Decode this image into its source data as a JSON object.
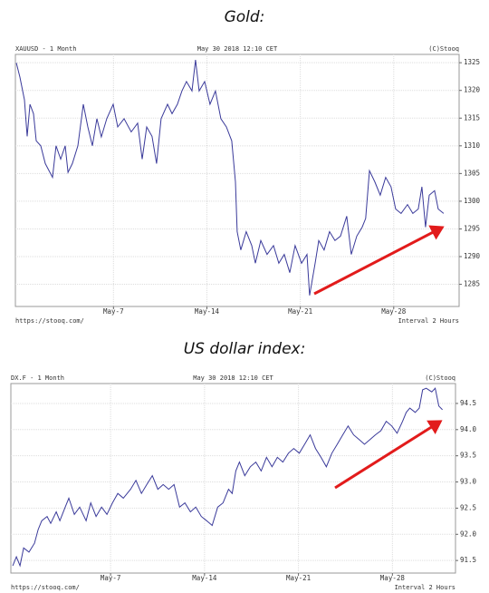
{
  "chart_data": [
    {
      "type": "line",
      "title": "Gold:",
      "symbol_label": "XAUUSD - 1 Month",
      "timestamp": "May 30 2018 12:10 CET",
      "source": "(C)Stooq",
      "url": "https://stooq.com/",
      "interval": "Interval 2 Hours",
      "color": "#3a3a9a",
      "grid": true,
      "x": [
        -0.28,
        -0.01,
        0.33,
        0.53,
        0.74,
        1.01,
        1.21,
        1.55,
        1.89,
        2.43,
        2.7,
        3.04,
        3.38,
        3.59,
        3.92,
        4.33,
        4.74,
        5.08,
        5.42,
        5.76,
        6.09,
        6.5,
        6.98,
        7.32,
        7.79,
        8.33,
        8.81,
        9.15,
        9.49,
        9.89,
        10.23,
        10.57,
        11.05,
        11.39,
        11.79,
        12.13,
        12.47,
        12.88,
        13.15,
        13.42,
        13.83,
        14.23,
        14.64,
        15.05,
        15.46,
        15.86,
        16.14,
        16.27,
        16.54,
        16.95,
        17.36,
        17.63,
        18.04,
        18.51,
        18.99,
        19.39,
        19.8,
        20.21,
        20.61,
        21.09,
        21.5,
        21.7,
        22.11,
        22.38,
        22.78,
        23.19,
        23.6,
        24.01,
        24.48,
        24.82,
        25.23,
        25.63,
        25.9,
        26.18,
        26.58,
        26.99,
        27.4,
        27.8,
        28.14,
        28.55,
        29.03,
        29.43,
        29.84,
        30.11,
        30.38,
        30.66,
        31.06,
        31.33,
        31.74
      ],
      "values": [
        1325,
        1322.4,
        1318.3,
        1311.7,
        1317.5,
        1315.8,
        1310.9,
        1310,
        1306.8,
        1304.3,
        1310,
        1307.6,
        1310,
        1305.2,
        1306.8,
        1310,
        1317.5,
        1313.4,
        1310,
        1314.9,
        1311.6,
        1314.9,
        1317.5,
        1313.4,
        1314.9,
        1312.5,
        1314.1,
        1307.6,
        1313.4,
        1311.7,
        1306.8,
        1314.9,
        1317.5,
        1315.8,
        1317.5,
        1319.9,
        1321.6,
        1319.9,
        1325.5,
        1319.9,
        1321.6,
        1317.5,
        1319.9,
        1314.9,
        1313.4,
        1310.9,
        1303.5,
        1294.5,
        1291.2,
        1294.5,
        1292,
        1288.8,
        1292.9,
        1290.4,
        1292,
        1288.8,
        1290.4,
        1287.1,
        1292,
        1288.8,
        1290.4,
        1283,
        1288.8,
        1292.9,
        1291.2,
        1294.5,
        1292.9,
        1293.7,
        1297.3,
        1290.4,
        1293.7,
        1295.3,
        1296.9,
        1305.5,
        1303.5,
        1301.1,
        1304.3,
        1302.6,
        1298.6,
        1297.8,
        1299.4,
        1297.8,
        1298.6,
        1302.6,
        1295.3,
        1301.1,
        1301.9,
        1298.6,
        1297.8
      ],
      "xlim": [
        -0.35,
        32.9
      ],
      "xticks": [
        {
          "value": 7,
          "label": "May-7"
        },
        {
          "value": 14,
          "label": "May-14"
        },
        {
          "value": 21,
          "label": "May-21"
        },
        {
          "value": 28,
          "label": "May-28"
        }
      ],
      "ylim": [
        1281,
        1326.5
      ],
      "yticks": [
        1285,
        1290,
        1295,
        1300,
        1305,
        1310,
        1315,
        1320,
        1325
      ]
    },
    {
      "type": "line",
      "title": "US dollar index:",
      "symbol_label": "DX.F - 1 Month",
      "timestamp": "May 30 2018 12:10 CET",
      "source": "(C)Stooq",
      "url": "https://stooq.com/",
      "interval": "Interval 2 Hours",
      "color": "#3a3a9a",
      "grid": true,
      "x": [
        -0.29,
        -0.02,
        0.25,
        0.52,
        0.92,
        1.33,
        1.6,
        1.87,
        2.27,
        2.54,
        2.95,
        3.22,
        3.62,
        3.89,
        4.3,
        4.7,
        5.18,
        5.52,
        5.92,
        6.33,
        6.73,
        7.14,
        7.54,
        7.95,
        8.49,
        8.89,
        9.3,
        9.7,
        10.11,
        10.52,
        10.92,
        11.33,
        11.73,
        12.14,
        12.54,
        12.95,
        13.35,
        13.76,
        14.16,
        14.57,
        14.98,
        15.38,
        15.79,
        16.06,
        16.33,
        16.6,
        17.0,
        17.41,
        17.82,
        18.22,
        18.62,
        19.03,
        19.43,
        19.84,
        20.25,
        20.65,
        21.06,
        21.46,
        21.87,
        22.27,
        22.68,
        23.08,
        23.49,
        23.89,
        24.3,
        24.7,
        25.11,
        25.52,
        25.92,
        26.33,
        26.73,
        27.14,
        27.54,
        27.95,
        28.35,
        28.76,
        29.03,
        29.3,
        29.7,
        30.0,
        30.25,
        30.52,
        30.93,
        31.19,
        31.46,
        31.73
      ],
      "values": [
        91.4,
        91.57,
        91.4,
        91.74,
        91.66,
        91.83,
        92.09,
        92.26,
        92.34,
        92.21,
        92.43,
        92.26,
        92.52,
        92.69,
        92.38,
        92.52,
        92.26,
        92.6,
        92.34,
        92.52,
        92.38,
        92.6,
        92.78,
        92.69,
        92.86,
        93.03,
        92.78,
        92.95,
        93.12,
        92.86,
        92.95,
        92.86,
        92.95,
        92.52,
        92.6,
        92.43,
        92.52,
        92.34,
        92.26,
        92.17,
        92.52,
        92.6,
        92.86,
        92.78,
        93.21,
        93.38,
        93.12,
        93.29,
        93.38,
        93.21,
        93.47,
        93.29,
        93.47,
        93.38,
        93.55,
        93.64,
        93.55,
        93.72,
        93.9,
        93.64,
        93.47,
        93.29,
        93.55,
        93.72,
        93.9,
        94.07,
        93.9,
        93.81,
        93.72,
        93.81,
        93.9,
        93.98,
        94.16,
        94.07,
        93.93,
        94.16,
        94.33,
        94.41,
        94.33,
        94.41,
        94.76,
        94.79,
        94.72,
        94.79,
        94.45,
        94.38
      ],
      "xlim": [
        -0.43,
        32.7
      ],
      "xticks": [
        {
          "value": 7,
          "label": "May-7"
        },
        {
          "value": 14,
          "label": "May-14"
        },
        {
          "value": 21,
          "label": "May-21"
        },
        {
          "value": 28,
          "label": "May-28"
        }
      ],
      "ylim": [
        91.26,
        94.88
      ],
      "yticks": [
        91.5,
        {
          "value": 92,
          "label": "92.0"
        },
        92.5,
        {
          "value": 93,
          "label": "93.0"
        },
        93.5,
        {
          "value": 94,
          "label": "94.0"
        },
        94.5
      ]
    }
  ]
}
